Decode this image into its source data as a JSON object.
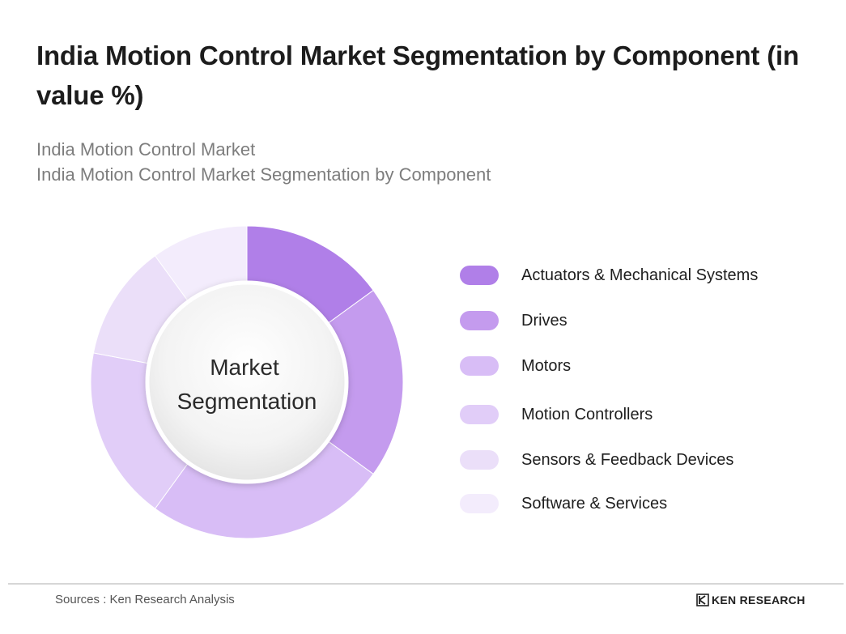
{
  "header": {
    "title": "India Motion Control Market Segmentation by Component (in value %)",
    "subtitle_line1": "India Motion Control Market",
    "subtitle_line2": "India Motion Control Market Segmentation by Component"
  },
  "chart_data": {
    "type": "pie",
    "donut": true,
    "center_label": [
      "Market",
      "Segmentation"
    ],
    "categories": [
      "Actuators & Mechanical Systems",
      "Drives",
      "Motors",
      "Motion Controllers",
      "Sensors & Feedback Devices",
      "Software & Services"
    ],
    "values": [
      15,
      20,
      25,
      18,
      12,
      10
    ],
    "colors": [
      "#b07fe8",
      "#c49bee",
      "#d8bdf6",
      "#e1cdf8",
      "#ebdff9",
      "#f3ecfc"
    ],
    "legend_position": "right"
  },
  "footer": {
    "source": "Sources : Ken Research Analysis",
    "brand": "KEN RESEARCH"
  }
}
